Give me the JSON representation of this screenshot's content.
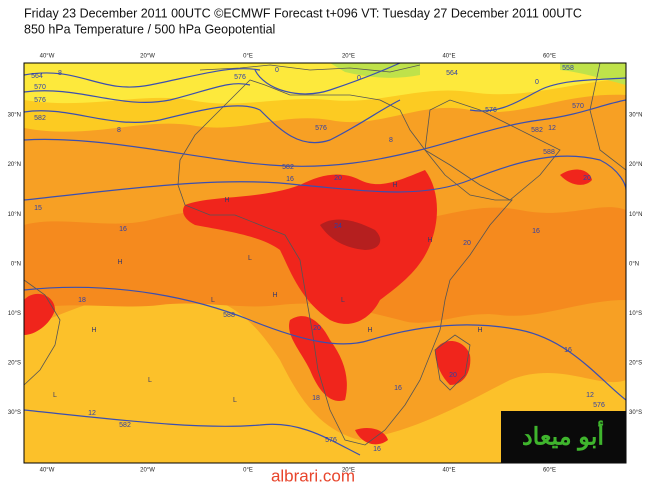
{
  "header": {
    "title": "Friday 23 December 2011 00UTC ©ECMWF Forecast t+096 VT: Tuesday 27 December 2011 00UTC",
    "subtitle": "850 hPa Temperature / 500 hPa Geopotential"
  },
  "lon_labels": [
    "40°W",
    "20°W",
    "0°E",
    "20°E",
    "40°E",
    "60°E"
  ],
  "lat_labels": [
    "30°N",
    "20°N",
    "10°N",
    "0°N",
    "10°S",
    "20°S",
    "30°S"
  ],
  "contour_labels": [
    "564",
    "8",
    "570",
    "576",
    "582",
    "8",
    "576",
    "0",
    "0",
    "564",
    "0",
    "558",
    "576",
    "570",
    "12",
    "582",
    "576",
    "8",
    "582",
    "16",
    "588",
    "20",
    "20",
    "15",
    "16",
    "24",
    "20",
    "16",
    "18",
    "588",
    "20",
    "16",
    "20",
    "16",
    "18",
    "12",
    "582",
    "12",
    "576",
    "576",
    "16"
  ],
  "pressure_marks": [
    "H",
    "H",
    "L",
    "H",
    "L",
    "H",
    "L",
    "H",
    "H",
    "L",
    "H",
    "L",
    "H",
    "L"
  ],
  "logo": "أبو ميعاد",
  "watermark": "albrari.com"
}
